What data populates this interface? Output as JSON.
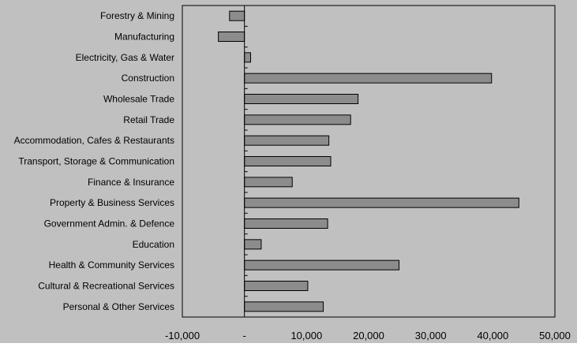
{
  "chart_data": {
    "type": "bar",
    "orientation": "horizontal",
    "categories": [
      "Forestry & Mining",
      "Manufacturing",
      "Electricity, Gas & Water",
      "Construction",
      "Wholesale Trade",
      "Retail Trade",
      "Accommodation, Cafes & Restaurants",
      "Transport, Storage & Communication",
      "Finance & Insurance",
      "Property & Business Services",
      "Government Admin. & Defence",
      "Education",
      "Health & Community Services",
      "Cultural & Recreational Services",
      "Personal & Other Services"
    ],
    "values": [
      -2400,
      -4200,
      1000,
      39800,
      18300,
      17100,
      13600,
      13900,
      7700,
      44200,
      13400,
      2700,
      24900,
      10200,
      12700
    ],
    "x_ticks": [
      {
        "value": -10000,
        "label": "-10,000"
      },
      {
        "value": 0,
        "label": "-"
      },
      {
        "value": 10000,
        "label": "10,000"
      },
      {
        "value": 20000,
        "label": "20,000"
      },
      {
        "value": 30000,
        "label": "30,000"
      },
      {
        "value": 40000,
        "label": "40,000"
      },
      {
        "value": 50000,
        "label": "50,000"
      }
    ],
    "xlim": [
      -10000,
      50000
    ],
    "title": "",
    "xlabel": "",
    "ylabel": "",
    "grid": false,
    "legend": "none",
    "colors": {
      "background": "#c0c0c0",
      "plot_area": "#c0c0c0",
      "bar_fill": "#8c8c8c",
      "bar_stroke": "#000000",
      "text": "#000000"
    }
  }
}
